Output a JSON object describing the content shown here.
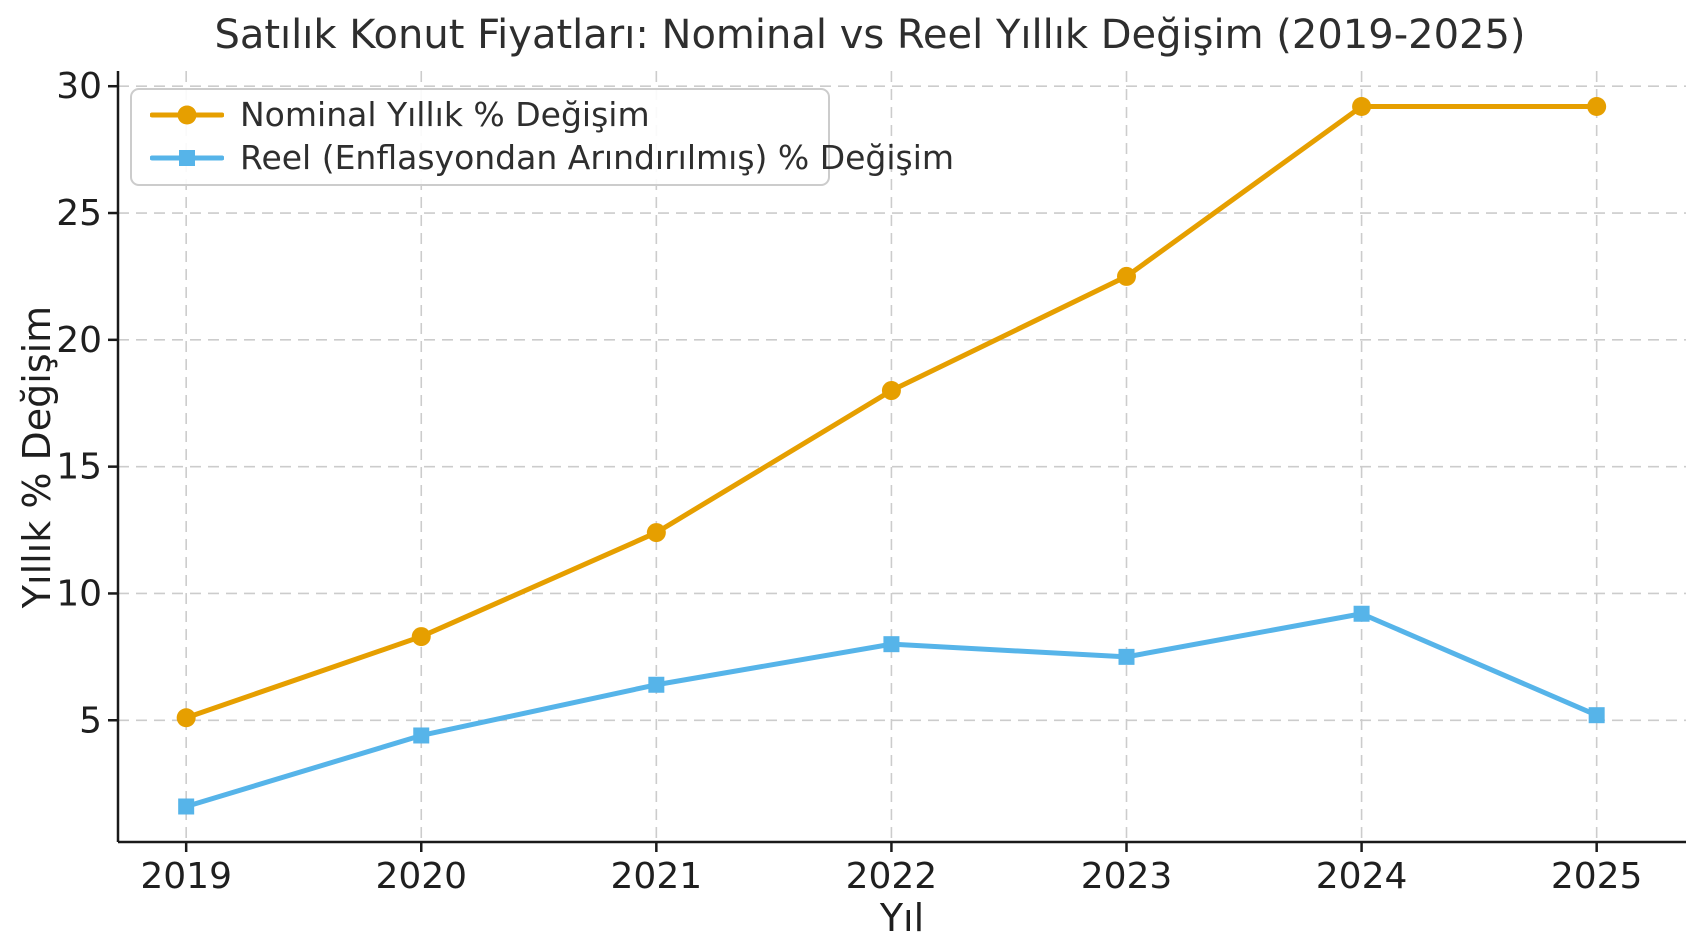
{
  "chart_data": {
    "type": "line",
    "title": "Satılık Konut Fiyatları: Nominal vs Reel Yıllık Değişim (2019-2025)",
    "xlabel": "Yıl",
    "ylabel": "Yıllık % Değişim",
    "x": [
      2019,
      2020,
      2021,
      2022,
      2023,
      2024,
      2025
    ],
    "series": [
      {
        "name": "Nominal Yıllık % Değişim",
        "values": [
          5.1,
          8.3,
          12.4,
          18.0,
          22.5,
          29.2,
          29.2
        ],
        "color": "#E69F00",
        "marker": "circle"
      },
      {
        "name": "Reel (Enflasyondan Arındırılmış) % Değişim",
        "values": [
          1.6,
          4.4,
          6.4,
          8.0,
          7.5,
          9.2,
          5.2
        ],
        "color": "#56B4E9",
        "marker": "square"
      }
    ],
    "xticks": [
      2019,
      2020,
      2021,
      2022,
      2023,
      2024,
      2025
    ],
    "yticks": [
      5,
      10,
      15,
      20,
      25,
      30
    ],
    "xlim": [
      2018.71,
      2025.38
    ],
    "ylim": [
      0.2,
      30.6
    ],
    "grid": true,
    "grid_style": "dashed",
    "legend_position": "upper left"
  },
  "colors": {
    "grid": "#cccccc",
    "spine": "#1a1a1a",
    "tick_text": "#1f1f1f",
    "background": "#ffffff"
  }
}
